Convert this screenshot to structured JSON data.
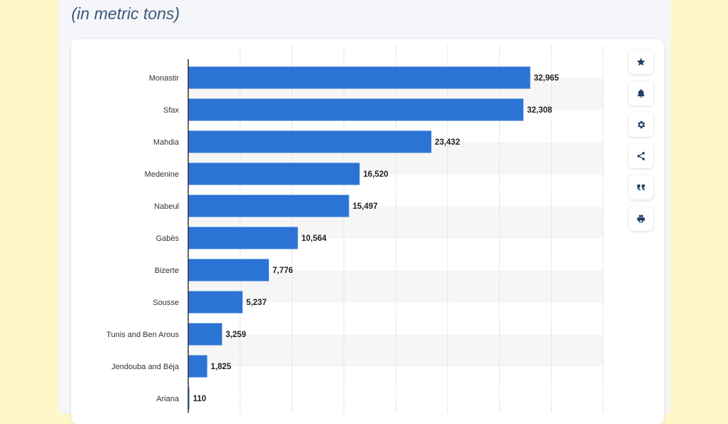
{
  "header": {
    "subtitle": "(in metric tons)"
  },
  "colors": {
    "bar": "#2b74d6",
    "stripe": "#f6f6f6",
    "grid": "#d4d4d4"
  },
  "toolbar": {
    "buttons": [
      {
        "icon": "star-icon"
      },
      {
        "icon": "bell-icon"
      },
      {
        "icon": "gear-icon"
      },
      {
        "icon": "share-icon"
      },
      {
        "icon": "quote-icon"
      },
      {
        "icon": "print-icon"
      }
    ]
  },
  "chart_data": {
    "type": "bar",
    "orientation": "horizontal",
    "categories": [
      "Monastir",
      "Sfax",
      "Mahdia",
      "Medenine",
      "Nabeul",
      "Gabès",
      "Bizerte",
      "Sousse",
      "Tunis and Ben Arous",
      "Jendouba and Béja",
      "Ariana"
    ],
    "values": [
      32965,
      32308,
      23432,
      16520,
      15497,
      10564,
      7776,
      5237,
      3259,
      1825,
      110
    ],
    "value_labels": [
      "32,965",
      "32,308",
      "23,432",
      "16,520",
      "15,497",
      "10,564",
      "7,776",
      "5,237",
      "3,259",
      "1,825",
      "110"
    ],
    "xlim": [
      0,
      40000
    ],
    "grid": true,
    "unit": "metric tons"
  }
}
